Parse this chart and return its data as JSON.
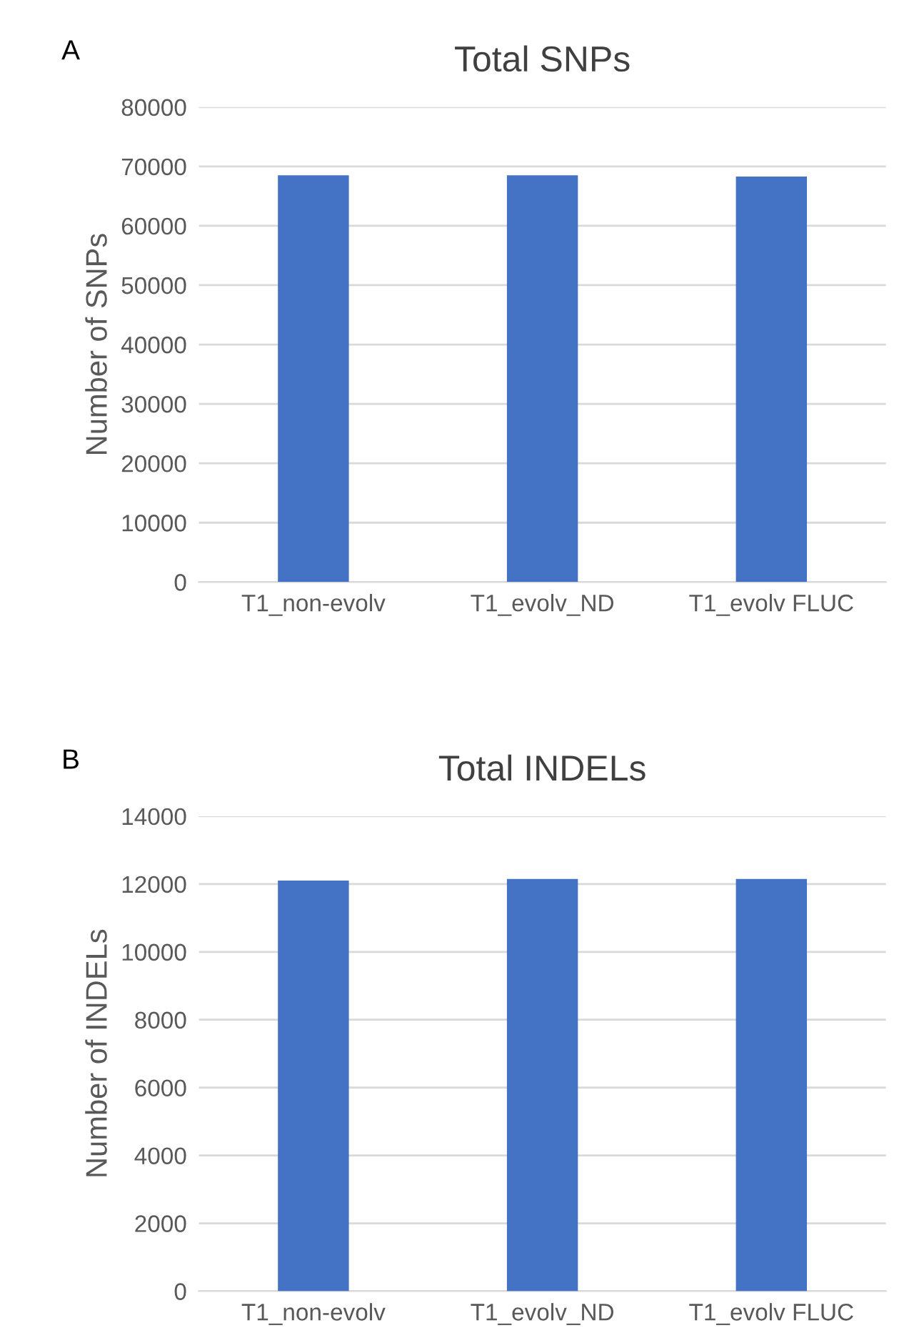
{
  "chart_data": [
    {
      "type": "bar",
      "title": "Total SNPs",
      "ylabel": "Number of SNPs",
      "annotations": [
        "A"
      ],
      "categories": [
        "T1_non-evolv",
        "T1_evolv_ND",
        "T1_evolv FLUC"
      ],
      "series": [
        {
          "color": "#4472c4",
          "values": [
            68500,
            68500,
            68300
          ]
        }
      ],
      "ylim": [
        0,
        80000
      ],
      "yticks": [
        0,
        10000,
        20000,
        30000,
        40000,
        50000,
        60000,
        70000,
        80000
      ],
      "grid": "y",
      "legend": false
    },
    {
      "type": "bar",
      "title": "Total INDELs",
      "ylabel": "Number of INDELs",
      "annotations": [
        "B"
      ],
      "categories": [
        "T1_non-evolv",
        "T1_evolv_ND",
        "T1_evolv FLUC"
      ],
      "series": [
        {
          "color": "#4472c4",
          "values": [
            12100,
            12150,
            12150
          ]
        }
      ],
      "ylim": [
        0,
        14000
      ],
      "yticks": [
        0,
        2000,
        4000,
        6000,
        8000,
        10000,
        12000,
        14000
      ],
      "grid": "y",
      "legend": false
    }
  ]
}
